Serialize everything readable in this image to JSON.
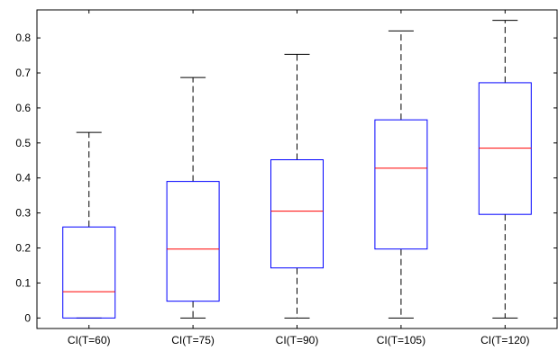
{
  "chart_data": {
    "type": "boxplot",
    "categories": [
      "CI(T=60)",
      "CI(T=75)",
      "CI(T=90)",
      "CI(T=105)",
      "CI(T=120)"
    ],
    "boxes": [
      {
        "whisker_low": 0,
        "q1": 0,
        "median": 0.075,
        "q3": 0.26,
        "whisker_high": 0.53
      },
      {
        "whisker_low": 0,
        "q1": 0.048,
        "median": 0.197,
        "q3": 0.39,
        "whisker_high": 0.687
      },
      {
        "whisker_low": 0,
        "q1": 0.143,
        "median": 0.305,
        "q3": 0.452,
        "whisker_high": 0.753
      },
      {
        "whisker_low": 0,
        "q1": 0.197,
        "median": 0.428,
        "q3": 0.566,
        "whisker_high": 0.82
      },
      {
        "whisker_low": 0,
        "q1": 0.296,
        "median": 0.485,
        "q3": 0.672,
        "whisker_high": 0.85
      }
    ],
    "yticks": [
      0,
      0.1,
      0.2,
      0.3,
      0.4,
      0.5,
      0.6,
      0.7,
      0.8
    ],
    "ylim": [
      -0.03,
      0.88
    ],
    "title": "",
    "xlabel": "",
    "ylabel": "",
    "grid": false,
    "colors": {
      "box": "#0000ff",
      "median": "#ff0000",
      "whisker": "#000000",
      "axes": "#000000"
    }
  }
}
